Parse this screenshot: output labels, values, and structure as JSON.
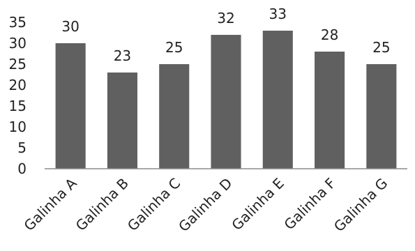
{
  "chart_data": {
    "type": "bar",
    "title": "",
    "xlabel": "",
    "ylabel": "",
    "categories": [
      "Galinha A",
      "Galinha B",
      "Galinha C",
      "Galinha D",
      "Galinha E",
      "Galinha F",
      "Galinha G"
    ],
    "values": [
      30,
      23,
      25,
      32,
      33,
      28,
      25
    ],
    "ylim": [
      0,
      35
    ],
    "yticks": [
      0,
      5,
      10,
      15,
      20,
      25,
      30,
      35
    ],
    "grid": false,
    "legend": "none",
    "bar_color": "#606060",
    "data_labels": true
  }
}
